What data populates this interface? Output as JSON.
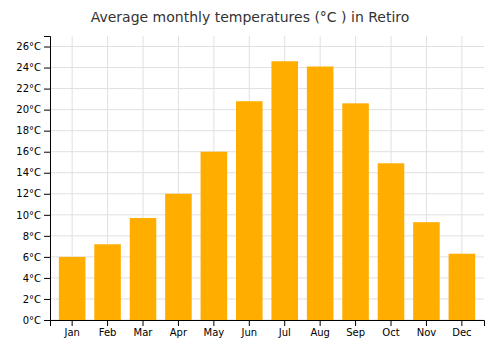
{
  "chart_data": {
    "type": "bar",
    "title": "Average monthly temperatures (°C ) in Retiro",
    "categories": [
      "Jan",
      "Feb",
      "Mar",
      "Apr",
      "May",
      "Jun",
      "Jul",
      "Aug",
      "Sep",
      "Oct",
      "Nov",
      "Dec"
    ],
    "values": [
      6.0,
      7.2,
      9.7,
      12.0,
      16.0,
      20.8,
      24.6,
      24.1,
      20.6,
      14.9,
      9.3,
      6.3
    ],
    "color": "#FFAE00",
    "ylim": [
      0,
      27
    ],
    "yticks": [
      {
        "value": 0,
        "label": "0°C"
      },
      {
        "value": 2,
        "label": "2°C"
      },
      {
        "value": 4,
        "label": "4°C"
      },
      {
        "value": 6,
        "label": "6°C"
      },
      {
        "value": 8,
        "label": "8°C"
      },
      {
        "value": 10,
        "label": "10°C"
      },
      {
        "value": 12,
        "label": "12°C"
      },
      {
        "value": 14,
        "label": "14°C"
      },
      {
        "value": 16,
        "label": "16°C"
      },
      {
        "value": 18,
        "label": "18°C"
      },
      {
        "value": 20,
        "label": "20°C"
      },
      {
        "value": 22,
        "label": "22°C"
      },
      {
        "value": 24,
        "label": "24°C"
      },
      {
        "value": 26,
        "label": "26°C"
      }
    ],
    "grid": true
  }
}
